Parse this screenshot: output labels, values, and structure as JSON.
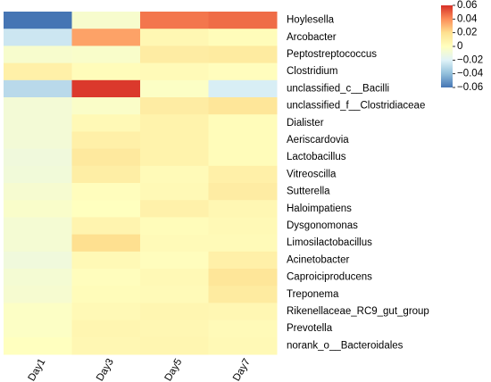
{
  "chart_data": {
    "type": "heatmap",
    "columns": [
      "Day1",
      "Day3",
      "Day5",
      "Day7"
    ],
    "rows": [
      "Hoylesella",
      "Arcobacter",
      "Peptostreptococcus",
      "Clostridium",
      "unclassified_c__Bacilli",
      "unclassified_f__Clostridiaceae",
      "Dialister",
      "Aeriscardovia",
      "Lactobacillus",
      "Vitreoscilla",
      "Sutterella",
      "Haloimpatiens",
      "Dysgonomonas",
      "Limosilactobacillus",
      "Acinetobacter",
      "Caproiciproducens",
      "Treponema",
      "Rikenellaceae_RC9_gut_group",
      "Prevotella",
      "norank_o__Bacteroidales"
    ],
    "values": [
      [
        -0.06,
        -0.005,
        0.045,
        0.047
      ],
      [
        -0.025,
        0.035,
        0.005,
        0.002
      ],
      [
        -0.005,
        -0.004,
        0.012,
        0.013
      ],
      [
        0.01,
        0.002,
        0.003,
        0.001
      ],
      [
        -0.03,
        0.058,
        -0.002,
        -0.022
      ],
      [
        -0.008,
        -0.003,
        0.012,
        0.016
      ],
      [
        -0.008,
        0.004,
        0.008,
        0.002
      ],
      [
        -0.008,
        0.01,
        0.008,
        0.002
      ],
      [
        -0.01,
        0.014,
        0.008,
        0.002
      ],
      [
        -0.009,
        0.011,
        0.003,
        0.01
      ],
      [
        -0.006,
        0.001,
        0.004,
        0.012
      ],
      [
        -0.004,
        0.0,
        0.009,
        0.005
      ],
      [
        -0.007,
        0.007,
        0.002,
        0.004
      ],
      [
        -0.007,
        0.02,
        0.003,
        0.003
      ],
      [
        -0.01,
        0.004,
        0.001,
        0.01
      ],
      [
        -0.007,
        0.001,
        0.004,
        0.016
      ],
      [
        -0.006,
        0.002,
        0.003,
        0.013
      ],
      [
        -0.002,
        0.004,
        0.006,
        0.005
      ],
      [
        -0.002,
        0.006,
        0.005,
        0.003
      ],
      [
        0.0,
        0.005,
        0.006,
        0.004
      ]
    ],
    "colorbar": {
      "min": -0.06,
      "max": 0.06,
      "ticks": [
        0.06,
        0.04,
        0.02,
        0,
        -0.02,
        -0.04,
        -0.06
      ],
      "tick_labels": [
        "0.06",
        "0.04",
        "0.02",
        "0",
        "−0.02",
        "−0.04",
        "−0.06"
      ],
      "colors": [
        "#4575b4",
        "#91bfdb",
        "#e0f3f8",
        "#ffffbf",
        "#fee090",
        "#fc8d59",
        "#d73027"
      ]
    },
    "column_label_rotation_deg": -60,
    "legend_position": "top-right"
  }
}
